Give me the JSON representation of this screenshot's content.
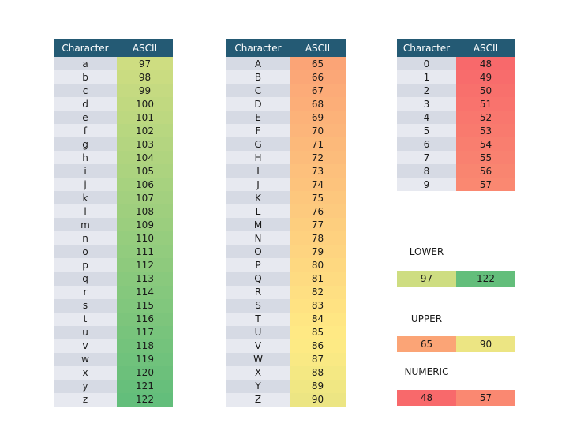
{
  "window": {
    "background": "#FFFFFF"
  },
  "headers": {
    "character": "Character",
    "ascii": "ASCII"
  },
  "colors": {
    "header_bg": "#245A74",
    "header_text": "#FFFFFF",
    "band_dark": "#D6DAE4",
    "band_light": "#E7E9F0",
    "cell_text": "#1A1A1A",
    "label_text": "#1A1A1A"
  },
  "color_scale": {
    "type": "3-color-scale",
    "min": {
      "value": 48,
      "color": "#F8696B"
    },
    "mid": {
      "value": 85.5,
      "color": "#FFEB84"
    },
    "max": {
      "value": 122,
      "color": "#63BE7B"
    }
  },
  "tables": [
    {
      "name": "lowercase",
      "rows": [
        [
          "a",
          97
        ],
        [
          "b",
          98
        ],
        [
          "c",
          99
        ],
        [
          "d",
          100
        ],
        [
          "e",
          101
        ],
        [
          "f",
          102
        ],
        [
          "g",
          103
        ],
        [
          "h",
          104
        ],
        [
          "i",
          105
        ],
        [
          "j",
          106
        ],
        [
          "k",
          107
        ],
        [
          "l",
          108
        ],
        [
          "m",
          109
        ],
        [
          "n",
          110
        ],
        [
          "o",
          111
        ],
        [
          "p",
          112
        ],
        [
          "q",
          113
        ],
        [
          "r",
          114
        ],
        [
          "s",
          115
        ],
        [
          "t",
          116
        ],
        [
          "u",
          117
        ],
        [
          "v",
          118
        ],
        [
          "w",
          119
        ],
        [
          "x",
          120
        ],
        [
          "y",
          121
        ],
        [
          "z",
          122
        ]
      ]
    },
    {
      "name": "uppercase",
      "rows": [
        [
          "A",
          65
        ],
        [
          "B",
          66
        ],
        [
          "C",
          67
        ],
        [
          "D",
          68
        ],
        [
          "E",
          69
        ],
        [
          "F",
          70
        ],
        [
          "G",
          71
        ],
        [
          "H",
          72
        ],
        [
          "I",
          73
        ],
        [
          "J",
          74
        ],
        [
          "K",
          75
        ],
        [
          "L",
          76
        ],
        [
          "M",
          77
        ],
        [
          "N",
          78
        ],
        [
          "O",
          79
        ],
        [
          "P",
          80
        ],
        [
          "Q",
          81
        ],
        [
          "R",
          82
        ],
        [
          "S",
          83
        ],
        [
          "T",
          84
        ],
        [
          "U",
          85
        ],
        [
          "V",
          86
        ],
        [
          "W",
          87
        ],
        [
          "X",
          88
        ],
        [
          "Y",
          89
        ],
        [
          "Z",
          90
        ]
      ]
    },
    {
      "name": "numeric",
      "rows": [
        [
          "0",
          48
        ],
        [
          "1",
          49
        ],
        [
          "2",
          50
        ],
        [
          "3",
          51
        ],
        [
          "4",
          52
        ],
        [
          "5",
          53
        ],
        [
          "6",
          54
        ],
        [
          "7",
          55
        ],
        [
          "8",
          56
        ],
        [
          "9",
          57
        ]
      ]
    }
  ],
  "legends": [
    {
      "label": "LOWER",
      "min": 97,
      "max": 122
    },
    {
      "label": "UPPER",
      "min": 65,
      "max": 90
    },
    {
      "label": "NUMERIC",
      "min": 48,
      "max": 57
    }
  ]
}
